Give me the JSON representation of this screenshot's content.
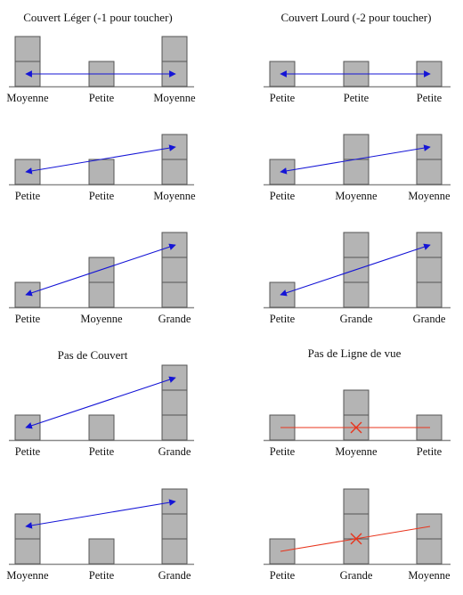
{
  "colors": {
    "block_fill": "#b4b4b4",
    "block_stroke": "#555555",
    "ground": "#8a8a8a",
    "arrow_blue": "#1515d6",
    "blocked_red": "#e8341c"
  },
  "titles": {
    "light_cover": "Couvert Léger (-1 pour toucher)",
    "heavy_cover": "Couvert Lourd (-2 pour toucher)",
    "no_cover": "Pas de Couvert",
    "no_los": "Pas de Ligne de vue"
  },
  "size_labels": {
    "small": "Petite",
    "medium": "Moyenne",
    "large": "Grande"
  },
  "panels": [
    {
      "id": "light-cover-1",
      "column": "left",
      "sizes": [
        "medium",
        "small",
        "medium"
      ],
      "from": 0.5,
      "to": 0.5,
      "line": "arrow"
    },
    {
      "id": "heavy-cover-1",
      "column": "right",
      "sizes": [
        "small",
        "small",
        "small"
      ],
      "from": 0.5,
      "to": 0.5,
      "line": "arrow"
    },
    {
      "id": "light-cover-2",
      "column": "left",
      "sizes": [
        "small",
        "small",
        "medium"
      ],
      "from": 0.5,
      "to": 1.5,
      "line": "arrow"
    },
    {
      "id": "heavy-cover-2",
      "column": "right",
      "sizes": [
        "small",
        "medium",
        "medium"
      ],
      "from": 0.5,
      "to": 1.5,
      "line": "arrow"
    },
    {
      "id": "light-cover-3",
      "column": "left",
      "sizes": [
        "small",
        "medium",
        "large"
      ],
      "from": 0.5,
      "to": 2.5,
      "line": "arrow"
    },
    {
      "id": "heavy-cover-3",
      "column": "right",
      "sizes": [
        "small",
        "large",
        "large"
      ],
      "from": 0.5,
      "to": 2.5,
      "line": "arrow"
    },
    {
      "id": "no-cover-1",
      "column": "left",
      "sizes": [
        "small",
        "small",
        "large"
      ],
      "from": 0.5,
      "to": 2.5,
      "line": "arrow"
    },
    {
      "id": "no-los-1",
      "column": "right",
      "sizes": [
        "small",
        "medium",
        "small"
      ],
      "from": 0.5,
      "to": 0.5,
      "line": "blocked"
    },
    {
      "id": "no-cover-2",
      "column": "left",
      "sizes": [
        "medium",
        "small",
        "large"
      ],
      "from": 1.5,
      "to": 2.5,
      "line": "arrow"
    },
    {
      "id": "no-los-2",
      "column": "right",
      "sizes": [
        "small",
        "large",
        "medium"
      ],
      "from": 0.5,
      "to": 1.5,
      "line": "blocked"
    }
  ]
}
